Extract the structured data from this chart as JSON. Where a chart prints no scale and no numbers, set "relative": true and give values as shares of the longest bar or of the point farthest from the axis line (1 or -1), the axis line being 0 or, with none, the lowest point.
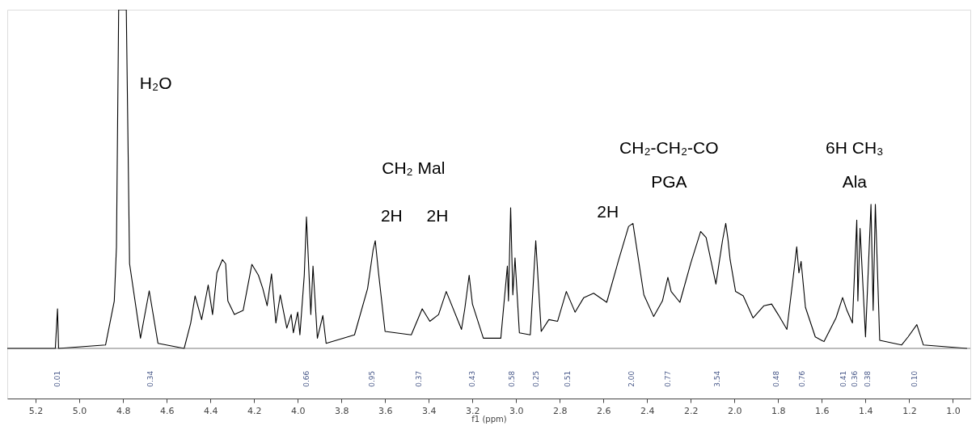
{
  "chart_data": {
    "type": "line",
    "relative": true,
    "xlabel": "f1 (ppm)",
    "xlim": [
      5.33,
      0.92
    ],
    "xticks": [
      5.2,
      {
        "value": 5,
        "label": "5.0"
      },
      4.8,
      4.6,
      4.4,
      4.2,
      {
        "value": 4,
        "label": "4.0"
      },
      3.8,
      3.6,
      3.4,
      3.2,
      {
        "value": 3,
        "label": "3.0"
      },
      2.8,
      2.6,
      2.4,
      2.2,
      {
        "value": 2,
        "label": "2.0"
      },
      1.8,
      1.6,
      1.4,
      1.2,
      {
        "value": 1,
        "label": "1.0"
      }
    ],
    "grid": false,
    "marker": "none",
    "line_style": "solid",
    "ref_lines": [
      {
        "axis": "y",
        "value": 0,
        "label": null,
        "color": "#555555"
      }
    ],
    "x": [
      5.33,
      5.11,
      5.1,
      5.095,
      4.88,
      4.84,
      4.83,
      4.82,
      4.785,
      4.77,
      4.72,
      4.68,
      4.64,
      4.52,
      4.49,
      4.47,
      4.44,
      4.41,
      4.39,
      4.37,
      4.345,
      4.33,
      4.32,
      4.29,
      4.25,
      4.21,
      4.18,
      4.16,
      4.14,
      4.12,
      4.1,
      4.08,
      4.05,
      4.03,
      4.02,
      4.0,
      3.99,
      3.97,
      3.96,
      3.94,
      3.93,
      3.91,
      3.885,
      3.87,
      3.74,
      3.68,
      3.655,
      3.645,
      3.63,
      3.6,
      3.48,
      3.43,
      3.395,
      3.355,
      3.32,
      3.25,
      3.235,
      3.215,
      3.2,
      3.15,
      3.07,
      3.04,
      3.035,
      3.025,
      3.015,
      3.005,
      2.985,
      2.935,
      2.91,
      2.885,
      2.85,
      2.81,
      2.77,
      2.73,
      2.69,
      2.645,
      2.585,
      2.53,
      2.485,
      2.465,
      2.415,
      2.37,
      2.33,
      2.305,
      2.29,
      2.25,
      2.2,
      2.155,
      2.13,
      2.085,
      2.055,
      2.04,
      2.03,
      2.02,
      1.995,
      1.96,
      1.915,
      1.865,
      1.83,
      1.8,
      1.76,
      1.73,
      1.715,
      1.705,
      1.695,
      1.675,
      1.63,
      1.59,
      1.535,
      1.505,
      1.485,
      1.46,
      1.44,
      1.435,
      1.425,
      1.4,
      1.375,
      1.365,
      1.355,
      1.335,
      1.235,
      1.205,
      1.165,
      1.135,
      0.935
    ],
    "series": [
      {
        "color": "#000000",
        "values": [
          0,
          0,
          0.117,
          0,
          0.01,
          0.14,
          0.3,
          1,
          1,
          0.25,
          0.03,
          0.17,
          0.015,
          0,
          0.075,
          0.155,
          0.085,
          0.187,
          0.1,
          0.223,
          0.262,
          0.25,
          0.14,
          0.1,
          0.112,
          0.248,
          0.216,
          0.177,
          0.126,
          0.22,
          0.075,
          0.158,
          0.06,
          0.1,
          0.046,
          0.107,
          0.04,
          0.216,
          0.388,
          0.1,
          0.243,
          0.03,
          0.097,
          0.015,
          0.04,
          0.177,
          0.29,
          0.318,
          0.223,
          0.05,
          0.04,
          0.117,
          0.08,
          0.1,
          0.168,
          0.056,
          0.117,
          0.216,
          0.131,
          0.03,
          0.03,
          0.243,
          0.14,
          0.415,
          0.158,
          0.267,
          0.046,
          0.04,
          0.318,
          0.05,
          0.085,
          0.08,
          0.168,
          0.107,
          0.15,
          0.163,
          0.136,
          0.262,
          0.36,
          0.369,
          0.158,
          0.094,
          0.14,
          0.21,
          0.168,
          0.136,
          0.252,
          0.345,
          0.327,
          0.19,
          0.318,
          0.369,
          0.323,
          0.262,
          0.168,
          0.155,
          0.09,
          0.126,
          0.131,
          0.1,
          0.056,
          0.216,
          0.3,
          0.223,
          0.257,
          0.121,
          0.034,
          0.02,
          0.09,
          0.15,
          0.112,
          0.075,
          0.379,
          0.14,
          0.354,
          0.034,
          0.425,
          0.112,
          0.425,
          0.024,
          0.01,
          0.034,
          0.07,
          0.01,
          0
        ]
      }
    ],
    "annotations": [
      "H₂O",
      "CH₂ Mal",
      "2H",
      "2H",
      "2H",
      "CH₂-CH₂-CO",
      "PGA",
      "6H CH₃",
      "Ala",
      "0.01",
      "0.34",
      "0.66",
      "0.95",
      "0.37",
      "0.43",
      "0.58",
      "0.25",
      "0.51",
      "2.00",
      "0.77",
      "3.54",
      "0.48",
      "0.76",
      "0.41",
      "0.36",
      "0.38",
      "0.10"
    ]
  }
}
